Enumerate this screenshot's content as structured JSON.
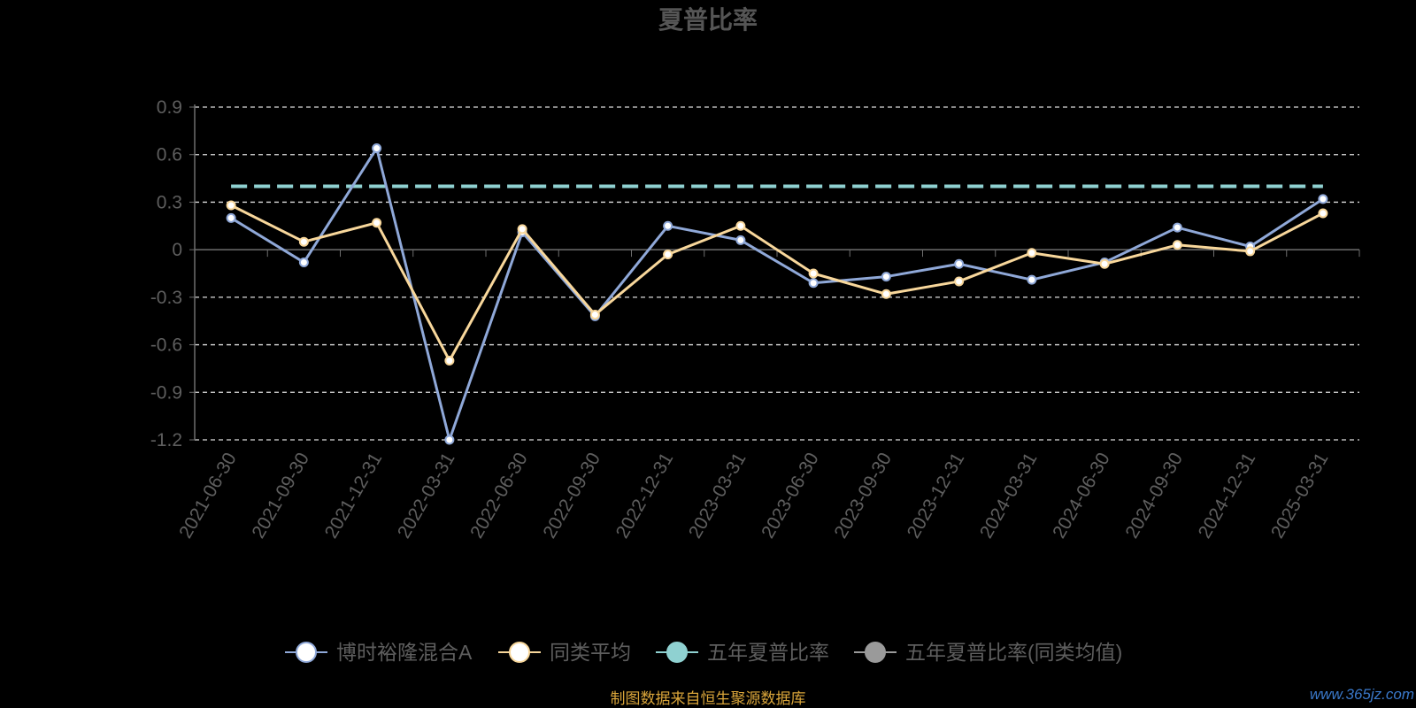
{
  "chart_data": {
    "type": "line",
    "title": "夏普比率",
    "categories": [
      "2021-06-30",
      "2021-09-30",
      "2021-12-31",
      "2022-03-31",
      "2022-06-30",
      "2022-09-30",
      "2022-12-31",
      "2023-03-31",
      "2023-06-30",
      "2023-09-30",
      "2023-12-31",
      "2024-03-31",
      "2024-06-30",
      "2024-09-30",
      "2024-12-31",
      "2025-03-31"
    ],
    "yticks": [
      "0.9",
      "0.6",
      "0.3",
      "0",
      "-0.3",
      "-0.6",
      "-0.9",
      "-1.2"
    ],
    "ylim": [
      -1.2,
      0.9
    ],
    "grid": true,
    "legend_position": "bottom",
    "series": [
      {
        "name": "博时裕隆混合A",
        "color": "#8fa8d8",
        "style": "solid",
        "values": [
          0.2,
          -0.08,
          0.64,
          -1.2,
          0.11,
          -0.42,
          0.15,
          0.06,
          -0.21,
          -0.17,
          -0.09,
          -0.19,
          -0.08,
          0.14,
          0.02,
          0.32
        ]
      },
      {
        "name": "同类平均",
        "color": "#f8d79b",
        "style": "solid",
        "values": [
          0.28,
          0.05,
          0.17,
          -0.7,
          0.13,
          -0.41,
          -0.03,
          0.15,
          -0.15,
          -0.28,
          -0.2,
          -0.02,
          -0.09,
          0.03,
          -0.01,
          0.23
        ]
      },
      {
        "name": "五年夏普比率",
        "color": "#8fd1d1",
        "style": "dashed",
        "values": [
          0.4,
          0.4,
          0.4,
          0.4,
          0.4,
          0.4,
          0.4,
          0.4,
          0.4,
          0.4,
          0.4,
          0.4,
          0.4,
          0.4,
          0.4,
          0.4
        ]
      },
      {
        "name": "五年夏普比率(同类均值)",
        "color": "#9a9a9a",
        "style": "dashed",
        "values": [
          0.4,
          0.4,
          0.4,
          0.4,
          0.4,
          0.4,
          0.4,
          0.4,
          0.4,
          0.4,
          0.4,
          0.4,
          0.4,
          0.4,
          0.4,
          0.4
        ]
      }
    ]
  },
  "footer": {
    "source": "制图数据来自恒生聚源数据库",
    "watermark": "www.365jz.com"
  }
}
